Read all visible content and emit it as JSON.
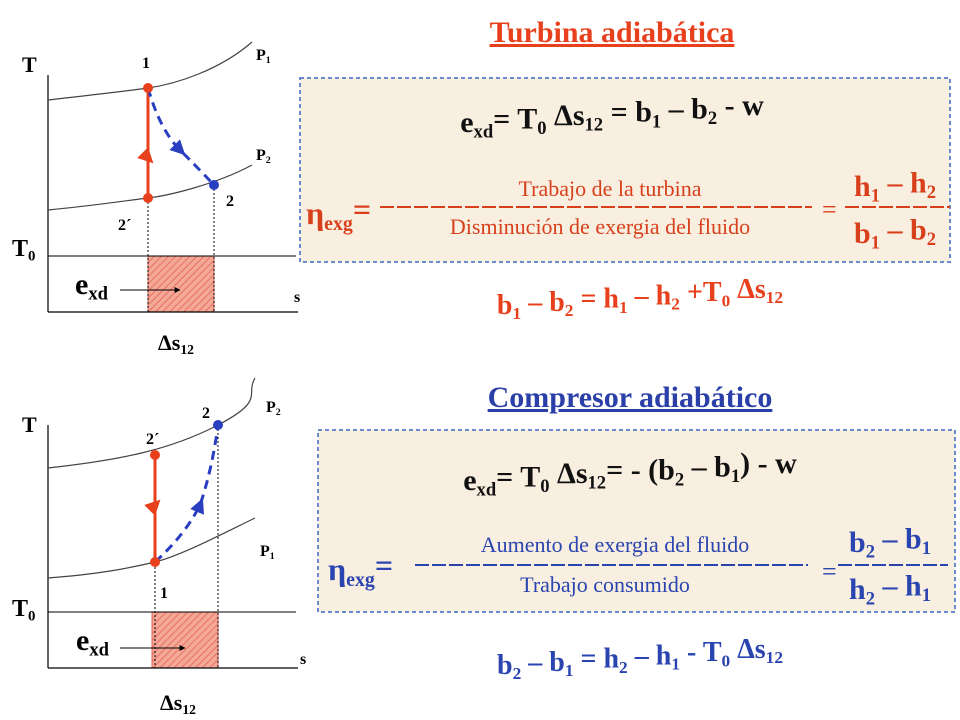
{
  "top": {
    "title": "Turbina adiabática",
    "diagram": {
      "axis_t": "T",
      "axis_s": "s",
      "t0": [
        {
          "t": "T"
        },
        {
          "sub": "0"
        }
      ],
      "point_1": "1",
      "point_2p": "2´",
      "point_2": "2",
      "p_upper": [
        {
          "t": "P"
        },
        {
          "sub": "1"
        }
      ],
      "p_lower": [
        {
          "t": "P"
        },
        {
          "sub": "2"
        }
      ],
      "exd": [
        {
          "t": "e"
        },
        {
          "sub": "xd"
        }
      ],
      "ds": [
        {
          "t": "Δs"
        },
        {
          "sub": "12"
        }
      ]
    },
    "formula": [
      {
        "t": "e"
      },
      {
        "sub": "xd"
      },
      {
        "t": "= T"
      },
      {
        "sub": "0"
      },
      {
        "t": " Δs"
      },
      {
        "sub": "12"
      },
      {
        "t": " = b"
      },
      {
        "sub": "1"
      },
      {
        "t": " – b"
      },
      {
        "sub": "2"
      },
      {
        "t": " - w"
      }
    ],
    "eta": [
      {
        "t": "η"
      },
      {
        "sub": "exg"
      },
      {
        "t": "="
      }
    ],
    "numerator": "Trabajo de la turbina",
    "denominator": "Disminución de exergia del fluido",
    "equals": "=",
    "ratio_num": [
      {
        "t": "h"
      },
      {
        "sub": "1"
      },
      {
        "t": " – h"
      },
      {
        "sub": "2"
      }
    ],
    "ratio_den": [
      {
        "t": "b"
      },
      {
        "sub": "1"
      },
      {
        "t": " – b"
      },
      {
        "sub": "2"
      }
    ],
    "result": [
      {
        "t": "b"
      },
      {
        "sub": "1"
      },
      {
        "t": " – b"
      },
      {
        "sub": "2"
      },
      {
        "t": " = h"
      },
      {
        "sub": "1"
      },
      {
        "t": " – h"
      },
      {
        "sub": "2"
      },
      {
        "t": " +T"
      },
      {
        "sub": "0"
      },
      {
        "t": " Δs"
      },
      {
        "sub": "12"
      }
    ]
  },
  "bottom": {
    "title": "Compresor adiabático",
    "diagram": {
      "axis_t": "T",
      "axis_s": "s",
      "t0": [
        {
          "t": "T"
        },
        {
          "sub": "0"
        }
      ],
      "point_1": "1",
      "point_2p": "2´",
      "point_2": "2",
      "p_upper": [
        {
          "t": "P"
        },
        {
          "sub": "2"
        }
      ],
      "p_lower": [
        {
          "t": "P"
        },
        {
          "sub": "1"
        }
      ],
      "exd": [
        {
          "t": "e"
        },
        {
          "sub": "xd"
        }
      ],
      "ds": [
        {
          "t": "Δs"
        },
        {
          "sub": "12"
        }
      ]
    },
    "formula": [
      {
        "t": "e"
      },
      {
        "sub": "xd"
      },
      {
        "t": "= T"
      },
      {
        "sub": "0"
      },
      {
        "t": " Δs"
      },
      {
        "sub": "12"
      },
      {
        "t": "= - (b"
      },
      {
        "sub": "2"
      },
      {
        "t": " – b"
      },
      {
        "sub": "1"
      },
      {
        "t": ") - w"
      }
    ],
    "eta": [
      {
        "t": "η"
      },
      {
        "sub": "exg"
      },
      {
        "t": "="
      }
    ],
    "numerator": "Aumento de exergia del fluido",
    "denominator": "Trabajo consumido",
    "equals": "=",
    "ratio_num": [
      {
        "t": "b"
      },
      {
        "sub": "2"
      },
      {
        "t": " – b"
      },
      {
        "sub": "1"
      }
    ],
    "ratio_den": [
      {
        "t": "h"
      },
      {
        "sub": "2"
      },
      {
        "t": " – h"
      },
      {
        "sub": "1"
      }
    ],
    "result": [
      {
        "t": "b"
      },
      {
        "sub": "2"
      },
      {
        "t": " – b"
      },
      {
        "sub": "1"
      },
      {
        "t": " = h"
      },
      {
        "sub": "2"
      },
      {
        "t": " – h"
      },
      {
        "sub": "1"
      },
      {
        "t": " - T"
      },
      {
        "sub": "0"
      },
      {
        "t": " Δs"
      },
      {
        "sub": "12"
      }
    ]
  }
}
